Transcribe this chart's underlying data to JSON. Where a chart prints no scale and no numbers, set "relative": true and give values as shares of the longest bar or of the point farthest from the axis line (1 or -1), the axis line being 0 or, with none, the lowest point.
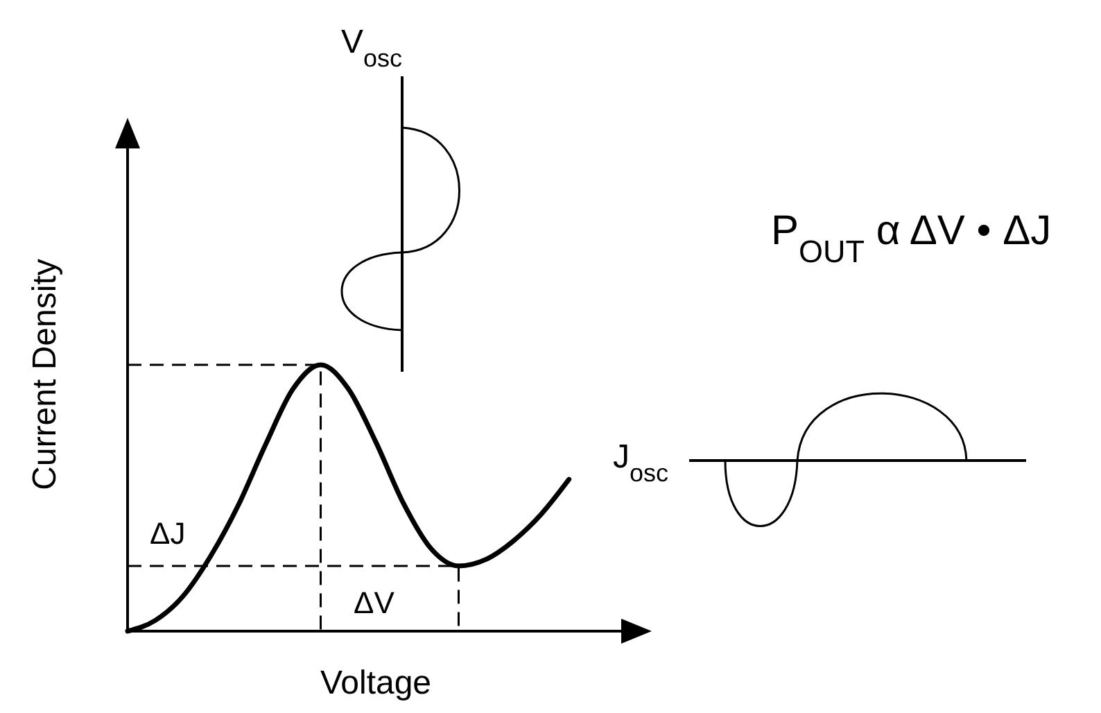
{
  "chart_data": {
    "type": "line",
    "xlabel": "Voltage",
    "ylabel": "Current Density",
    "relative": true,
    "color": "#000000",
    "categories": [
      null,
      null,
      null,
      null,
      null,
      null,
      null,
      null,
      null,
      null,
      null,
      null,
      null,
      null,
      null,
      null,
      null,
      null,
      null,
      null
    ],
    "values": [
      0,
      0.04,
      0.13,
      0.28,
      0.47,
      0.7,
      0.91,
      1,
      0.91,
      0.71,
      0.48,
      0.31,
      0.245,
      0.27,
      0.34,
      0.44,
      0.57,
      null,
      null,
      null
    ],
    "ref_lines": [
      {
        "axis": "y",
        "value": 1,
        "line_style": "dashed"
      },
      {
        "axis": "y",
        "value": 0.245,
        "line_style": "dashed"
      }
    ],
    "annotations": [
      "ΔJ",
      "ΔV",
      "V$_{osc}$",
      "J$_{osc}$",
      "P$_{OUT}$ α  ΔV • ΔJ"
    ]
  }
}
